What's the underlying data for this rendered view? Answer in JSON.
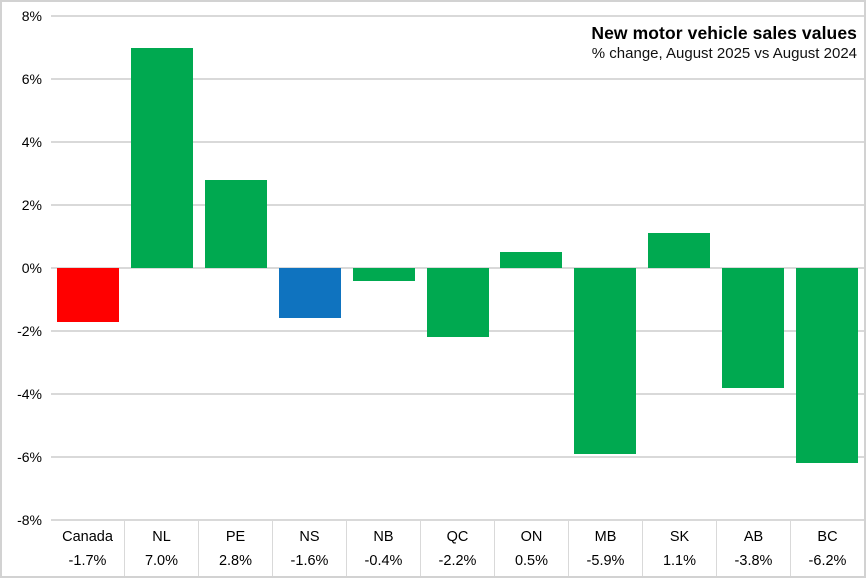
{
  "chart_data": {
    "type": "bar",
    "title": "New motor vehicle sales values",
    "subtitle": "% change, August 2025 vs August 2024",
    "categories": [
      "Canada",
      "NL",
      "PE",
      "NS",
      "NB",
      "QC",
      "ON",
      "MB",
      "SK",
      "AB",
      "BC"
    ],
    "values": [
      -1.7,
      7.0,
      2.8,
      -1.6,
      -0.4,
      -2.2,
      0.5,
      -5.9,
      1.1,
      -3.8,
      -6.2
    ],
    "value_labels": [
      "-1.7%",
      "7.0%",
      "2.8%",
      "-1.6%",
      "-0.4%",
      "-2.2%",
      "0.5%",
      "-5.9%",
      "1.1%",
      "-3.8%",
      "-6.2%"
    ],
    "bar_colors": [
      "#ff0000",
      "#00a950",
      "#00a950",
      "#0f73bf",
      "#00a950",
      "#00a950",
      "#00a950",
      "#00a950",
      "#00a950",
      "#00a950",
      "#00a950"
    ],
    "color_legend": {
      "national_total": "#ff0000",
      "highlighted_province": "#0f73bf",
      "default_province": "#00a950"
    },
    "ylim": [
      -8,
      8
    ],
    "y_tick_values": [
      8,
      6,
      4,
      2,
      0,
      -2,
      -4,
      -6,
      -8
    ],
    "y_tick_labels": [
      "8%",
      "6%",
      "4%",
      "2%",
      "0%",
      "-2%",
      "-4%",
      "-6%",
      "-8%"
    ],
    "grid": true,
    "legend_position": "none",
    "gridline_color": "#d9d9d9"
  }
}
